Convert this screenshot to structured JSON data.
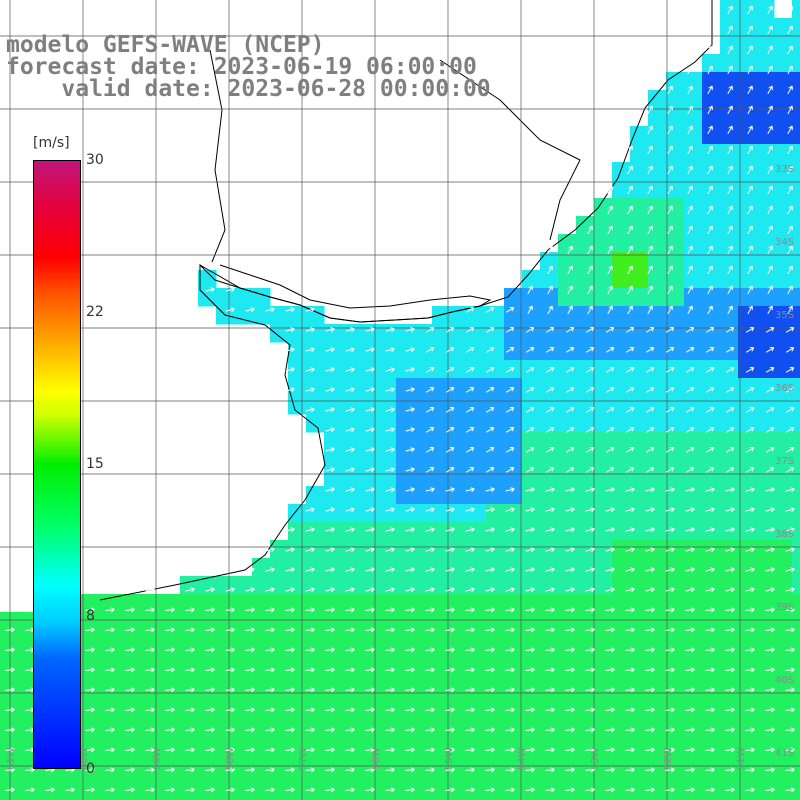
{
  "title": {
    "line1": "modelo GEFS-WAVE (NCEP)",
    "line2": "forecast date: 2023-06-19 06:00:00",
    "line3": "    valid date: 2023-06-28 00:00:00"
  },
  "colorbar": {
    "unit": "[m/s]",
    "ticks": [
      {
        "label": "30",
        "value": 30
      },
      {
        "label": "22",
        "value": 22
      },
      {
        "label": "15",
        "value": 15
      },
      {
        "label": "8",
        "value": 8
      },
      {
        "label": "0",
        "value": 0
      }
    ],
    "colors": [
      "#0000ff",
      "#00ccff",
      "#00ffff",
      "#00ee00",
      "#ffff00",
      "#ff0000",
      "#c0157a"
    ]
  },
  "map": {
    "land_color": "#ffffff",
    "grid_color": "#555555",
    "coast_color": "#000000",
    "arrow_color": "#ffffff",
    "lat_labels": [
      "33S",
      "34S",
      "35S",
      "36S",
      "37S",
      "38S",
      "39S",
      "40S",
      "41S"
    ],
    "lon_labels": [
      "61W",
      "60W",
      "59W",
      "58W",
      "57W",
      "56W",
      "55W",
      "54W",
      "53W",
      "52W",
      "51W"
    ]
  }
}
